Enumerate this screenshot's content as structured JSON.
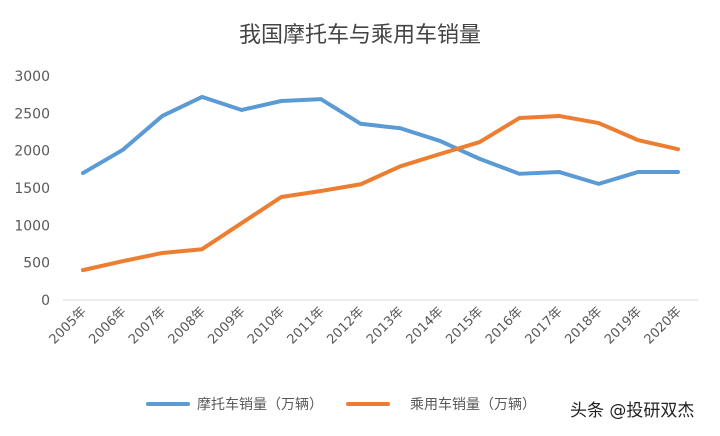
{
  "chart_data": {
    "type": "line",
    "title": "我国摩托车与乘用车销量",
    "categories": [
      "2005年",
      "2006年",
      "2007年",
      "2008年",
      "2009年",
      "2010年",
      "2011年",
      "2012年",
      "2013年",
      "2014年",
      "2015年",
      "2016年",
      "2017年",
      "2018年",
      "2019年",
      "2020年"
    ],
    "ylim": [
      0,
      3000
    ],
    "yticks": [
      0,
      500,
      1000,
      1500,
      2000,
      2500,
      3000
    ],
    "grid": false,
    "legend": "bottom",
    "series": [
      {
        "name": "摩托车销量（万辆）",
        "color": "#5b9bd5",
        "values": [
          1700,
          2010,
          2465,
          2720,
          2545,
          2665,
          2690,
          2360,
          2300,
          2130,
          1890,
          1690,
          1715,
          1555,
          1715,
          1715
        ]
      },
      {
        "name": "乘用车销量（万辆）",
        "color": "#ed7d31",
        "values": [
          400,
          520,
          630,
          680,
          1030,
          1380,
          1460,
          1550,
          1790,
          1955,
          2115,
          2437,
          2465,
          2370,
          2140,
          2020
        ]
      }
    ]
  },
  "watermark": "头条 @投研双杰"
}
